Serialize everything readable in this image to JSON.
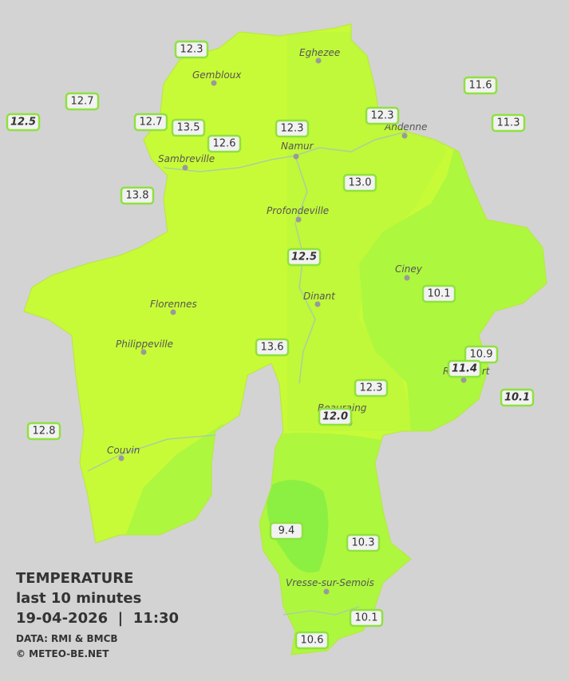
{
  "map": {
    "legend": {
      "title": "TEMPERATURE",
      "subtitle": "last 10 minutes",
      "datetime": "19-04-2026  |  11:30",
      "source": "DATA: RMI & BMCB",
      "credit": "© METEO-BE.NET"
    },
    "cities": [
      "Eghezee",
      "Gembloux",
      "Andenne",
      "Namur",
      "Sambreville",
      "Profondeville",
      "Ciney",
      "Dinant",
      "Florennes",
      "Philippeville",
      "Rochefort",
      "Beauraing",
      "Couvin",
      "Vresse-sur-Semois"
    ],
    "stations": [
      "12.3",
      "12.7",
      "12.5",
      "12.7",
      "13.5",
      "12.6",
      "12.3",
      "12.3",
      "11.6",
      "11.3",
      "13.8",
      "13.0",
      "12.5",
      "10.1",
      "13.6",
      "10.9",
      "11.4",
      "10.1",
      "12.3",
      "12.0",
      "12.8",
      "9.4",
      "10.3",
      "10.1",
      "10.6"
    ]
  }
}
